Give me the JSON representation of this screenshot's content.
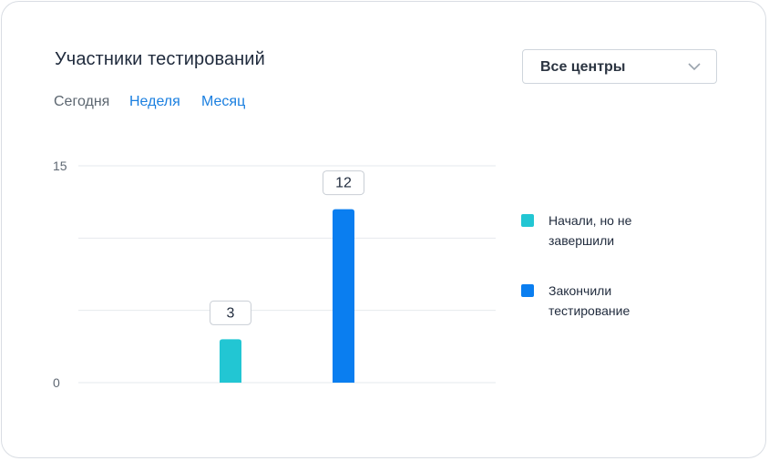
{
  "header": {
    "title": "Участники тестирований"
  },
  "tabs": [
    {
      "label": "Сегодня",
      "active": true
    },
    {
      "label": "Неделя",
      "active": false
    },
    {
      "label": "Месяц",
      "active": false
    }
  ],
  "center_select": {
    "value": "Все центры",
    "icon": "chevron-down-icon"
  },
  "colors": {
    "started": "#22c6d3",
    "finished": "#0a7ef0",
    "link": "#1a7fe0"
  },
  "chart_data": {
    "type": "bar",
    "categories": [
      "",
      ""
    ],
    "series": [
      {
        "name": "Начали, но не завершили",
        "color": "#22c6d3",
        "values": [
          3,
          null
        ]
      },
      {
        "name": "Закончили тестирование",
        "color": "#0a7ef0",
        "values": [
          null,
          12
        ]
      }
    ],
    "y_ticks": [
      15,
      0
    ],
    "ylim": [
      0,
      15
    ],
    "grid": true,
    "legend_position": "right",
    "data_labels": [
      "3",
      "12"
    ]
  }
}
